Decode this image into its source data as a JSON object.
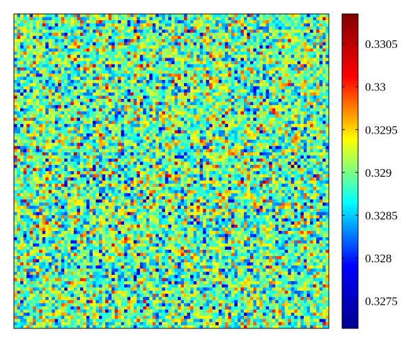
{
  "chart_data": {
    "type": "heatmap",
    "grid": {
      "rows": 100,
      "cols": 100
    },
    "value_distribution": {
      "mean": 0.32895,
      "min": 0.32718,
      "max": 0.33085
    },
    "colormap": "jet",
    "colormap_stops": [
      "#00008f",
      "#0000ff",
      "#00ffff",
      "#ffff00",
      "#ff0000",
      "#800000"
    ],
    "colorbar": {
      "range": [
        0.32718,
        0.33085
      ],
      "ticks": [
        0.3275,
        0.328,
        0.3285,
        0.329,
        0.3295,
        0.33,
        0.3305
      ],
      "tick_labels": [
        "0.3275",
        "0.328",
        "0.3285",
        "0.329",
        "0.3295",
        "0.33",
        "0.3305"
      ]
    }
  }
}
